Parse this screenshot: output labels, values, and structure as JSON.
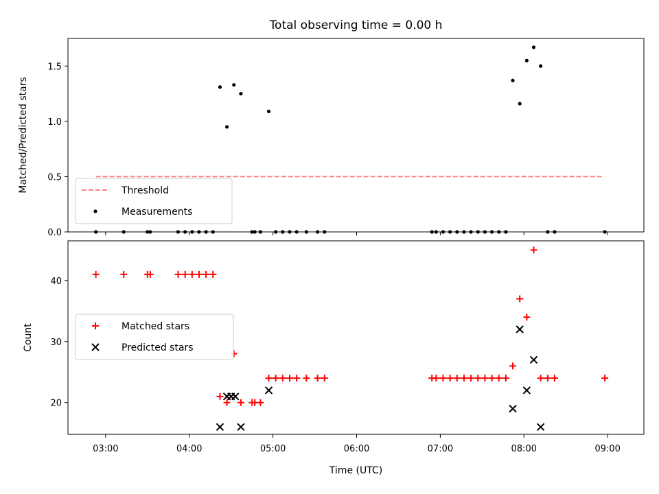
{
  "chart_data": [
    {
      "type": "scatter",
      "title": "Total observing time = 0.00 h",
      "xlabel": "",
      "ylabel": "Matched/Predicted stars",
      "ylim": [
        0,
        1.75
      ],
      "yticks": [
        0.0,
        0.5,
        1.0,
        1.5
      ],
      "ytick_labels": [
        "0.0",
        "0.5",
        "1.0",
        "1.5"
      ],
      "xlim": [
        "02:33",
        "09:26"
      ],
      "legend": "lower-left",
      "series": [
        {
          "name": "Threshold",
          "kind": "line",
          "style": "dashed",
          "color": "#ff7f7f",
          "points": [
            {
              "x": "02:53",
              "y": 0.5
            },
            {
              "x": "08:56",
              "y": 0.5
            }
          ]
        },
        {
          "name": "Measurements",
          "kind": "scatter",
          "color": "#000000",
          "points": [
            {
              "x": "02:53",
              "y": 0
            },
            {
              "x": "03:13",
              "y": 0
            },
            {
              "x": "03:30",
              "y": 0
            },
            {
              "x": "03:32",
              "y": 0
            },
            {
              "x": "03:52",
              "y": 0
            },
            {
              "x": "03:57",
              "y": 0
            },
            {
              "x": "04:02",
              "y": 0
            },
            {
              "x": "04:07",
              "y": 0
            },
            {
              "x": "04:12",
              "y": 0
            },
            {
              "x": "04:17",
              "y": 0
            },
            {
              "x": "04:22",
              "y": 1.31
            },
            {
              "x": "04:27",
              "y": 0.95
            },
            {
              "x": "04:32",
              "y": 1.33
            },
            {
              "x": "04:37",
              "y": 1.25
            },
            {
              "x": "04:45",
              "y": 0
            },
            {
              "x": "04:47",
              "y": 0
            },
            {
              "x": "04:51",
              "y": 0
            },
            {
              "x": "04:57",
              "y": 1.09
            },
            {
              "x": "05:02",
              "y": 0
            },
            {
              "x": "05:07",
              "y": 0
            },
            {
              "x": "05:12",
              "y": 0
            },
            {
              "x": "05:17",
              "y": 0
            },
            {
              "x": "05:24",
              "y": 0
            },
            {
              "x": "05:32",
              "y": 0
            },
            {
              "x": "05:37",
              "y": 0
            },
            {
              "x": "06:54",
              "y": 0
            },
            {
              "x": "06:57",
              "y": 0
            },
            {
              "x": "07:02",
              "y": 0
            },
            {
              "x": "07:07",
              "y": 0
            },
            {
              "x": "07:12",
              "y": 0
            },
            {
              "x": "07:17",
              "y": 0
            },
            {
              "x": "07:22",
              "y": 0
            },
            {
              "x": "07:27",
              "y": 0
            },
            {
              "x": "07:32",
              "y": 0
            },
            {
              "x": "07:37",
              "y": 0
            },
            {
              "x": "07:42",
              "y": 0
            },
            {
              "x": "07:47",
              "y": 0
            },
            {
              "x": "07:52",
              "y": 1.37
            },
            {
              "x": "07:57",
              "y": 1.16
            },
            {
              "x": "08:02",
              "y": 1.55
            },
            {
              "x": "08:07",
              "y": 1.67
            },
            {
              "x": "08:12",
              "y": 1.5
            },
            {
              "x": "08:17",
              "y": 0
            },
            {
              "x": "08:22",
              "y": 0
            },
            {
              "x": "08:58",
              "y": 0
            }
          ]
        }
      ]
    },
    {
      "type": "scatter",
      "title": "",
      "xlabel": "Time (UTC)",
      "ylabel": "Count",
      "ylim": [
        14.8,
        46.5
      ],
      "yticks": [
        20,
        30,
        40
      ],
      "ytick_labels": [
        "20",
        "30",
        "40"
      ],
      "xlim": [
        "02:33",
        "09:26"
      ],
      "xticks": [
        "03:00",
        "04:00",
        "05:00",
        "06:00",
        "07:00",
        "08:00",
        "09:00"
      ],
      "xtick_labels": [
        "03:00",
        "04:00",
        "05:00",
        "06:00",
        "07:00",
        "08:00",
        "09:00"
      ],
      "legend": "center-left",
      "series": [
        {
          "name": "Matched stars",
          "kind": "scatter",
          "marker": "plus",
          "color": "#ff0000",
          "points": [
            {
              "x": "02:53",
              "y": 41
            },
            {
              "x": "03:13",
              "y": 41
            },
            {
              "x": "03:30",
              "y": 41
            },
            {
              "x": "03:32",
              "y": 41
            },
            {
              "x": "03:52",
              "y": 41
            },
            {
              "x": "03:57",
              "y": 41
            },
            {
              "x": "04:02",
              "y": 41
            },
            {
              "x": "04:07",
              "y": 41
            },
            {
              "x": "04:12",
              "y": 41
            },
            {
              "x": "04:17",
              "y": 41
            },
            {
              "x": "04:22",
              "y": 21
            },
            {
              "x": "04:27",
              "y": 20
            },
            {
              "x": "04:32",
              "y": 28
            },
            {
              "x": "04:37",
              "y": 20
            },
            {
              "x": "04:45",
              "y": 20
            },
            {
              "x": "04:47",
              "y": 20
            },
            {
              "x": "04:51",
              "y": 20
            },
            {
              "x": "04:57",
              "y": 24
            },
            {
              "x": "05:02",
              "y": 24
            },
            {
              "x": "05:07",
              "y": 24
            },
            {
              "x": "05:12",
              "y": 24
            },
            {
              "x": "05:17",
              "y": 24
            },
            {
              "x": "05:24",
              "y": 24
            },
            {
              "x": "05:32",
              "y": 24
            },
            {
              "x": "05:37",
              "y": 24
            },
            {
              "x": "06:54",
              "y": 24
            },
            {
              "x": "06:57",
              "y": 24
            },
            {
              "x": "07:02",
              "y": 24
            },
            {
              "x": "07:07",
              "y": 24
            },
            {
              "x": "07:12",
              "y": 24
            },
            {
              "x": "07:17",
              "y": 24
            },
            {
              "x": "07:22",
              "y": 24
            },
            {
              "x": "07:27",
              "y": 24
            },
            {
              "x": "07:32",
              "y": 24
            },
            {
              "x": "07:37",
              "y": 24
            },
            {
              "x": "07:42",
              "y": 24
            },
            {
              "x": "07:47",
              "y": 24
            },
            {
              "x": "07:52",
              "y": 26
            },
            {
              "x": "07:57",
              "y": 37
            },
            {
              "x": "08:02",
              "y": 34
            },
            {
              "x": "08:07",
              "y": 45
            },
            {
              "x": "08:12",
              "y": 24
            },
            {
              "x": "08:17",
              "y": 24
            },
            {
              "x": "08:22",
              "y": 24
            },
            {
              "x": "08:58",
              "y": 24
            }
          ]
        },
        {
          "name": "Predicted stars",
          "kind": "scatter",
          "marker": "x",
          "color": "#000000",
          "points": [
            {
              "x": "04:22",
              "y": 16
            },
            {
              "x": "04:27",
              "y": 21
            },
            {
              "x": "04:30",
              "y": 21
            },
            {
              "x": "04:33",
              "y": 21
            },
            {
              "x": "04:37",
              "y": 16
            },
            {
              "x": "04:57",
              "y": 22
            },
            {
              "x": "07:52",
              "y": 19
            },
            {
              "x": "07:57",
              "y": 32
            },
            {
              "x": "08:02",
              "y": 22
            },
            {
              "x": "08:07",
              "y": 27
            },
            {
              "x": "08:12",
              "y": 16
            }
          ]
        }
      ]
    }
  ]
}
